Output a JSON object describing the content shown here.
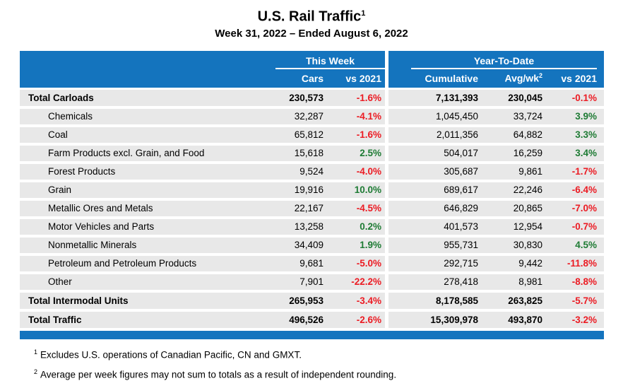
{
  "page": {
    "title": "U.S. Rail Traffic",
    "title_footnote_ref": "1",
    "subtitle": "Week 31, 2022 – Ended August 6, 2022"
  },
  "colors": {
    "header_blue": "#1474BE",
    "row_gray": "#E8E8E8",
    "negative_red": "#EC1B23",
    "positive_green": "#1E7B34"
  },
  "table": {
    "group_headers": {
      "this_week": "This Week",
      "year_to_date": "Year-To-Date"
    },
    "column_headers": {
      "cars": "Cars",
      "vs_2021_week": "vs 2021",
      "cumulative": "Cumulative",
      "avg_wk": "Avg/wk",
      "avg_wk_footnote_ref": "2",
      "vs_2021_ytd": "vs 2021"
    },
    "rows": [
      {
        "label": "Total Carloads",
        "total": true,
        "cars": "230,573",
        "vs_week": "-1.6%",
        "vs_week_positive": false,
        "cumulative": "7,131,393",
        "avg_wk": "230,045",
        "vs_ytd": "-0.1%",
        "vs_ytd_positive": false
      },
      {
        "label": "Chemicals",
        "total": false,
        "cars": "32,287",
        "vs_week": "-4.1%",
        "vs_week_positive": false,
        "cumulative": "1,045,450",
        "avg_wk": "33,724",
        "vs_ytd": "3.9%",
        "vs_ytd_positive": true
      },
      {
        "label": "Coal",
        "total": false,
        "cars": "65,812",
        "vs_week": "-1.6%",
        "vs_week_positive": false,
        "cumulative": "2,011,356",
        "avg_wk": "64,882",
        "vs_ytd": "3.3%",
        "vs_ytd_positive": true
      },
      {
        "label": "Farm Products excl. Grain, and Food",
        "total": false,
        "cars": "15,618",
        "vs_week": "2.5%",
        "vs_week_positive": true,
        "cumulative": "504,017",
        "avg_wk": "16,259",
        "vs_ytd": "3.4%",
        "vs_ytd_positive": true
      },
      {
        "label": "Forest Products",
        "total": false,
        "cars": "9,524",
        "vs_week": "-4.0%",
        "vs_week_positive": false,
        "cumulative": "305,687",
        "avg_wk": "9,861",
        "vs_ytd": "-1.7%",
        "vs_ytd_positive": false
      },
      {
        "label": "Grain",
        "total": false,
        "cars": "19,916",
        "vs_week": "10.0%",
        "vs_week_positive": true,
        "cumulative": "689,617",
        "avg_wk": "22,246",
        "vs_ytd": "-6.4%",
        "vs_ytd_positive": false
      },
      {
        "label": "Metallic Ores and Metals",
        "total": false,
        "cars": "22,167",
        "vs_week": "-4.5%",
        "vs_week_positive": false,
        "cumulative": "646,829",
        "avg_wk": "20,865",
        "vs_ytd": "-7.0%",
        "vs_ytd_positive": false
      },
      {
        "label": "Motor Vehicles and Parts",
        "total": false,
        "cars": "13,258",
        "vs_week": "0.2%",
        "vs_week_positive": true,
        "cumulative": "401,573",
        "avg_wk": "12,954",
        "vs_ytd": "-0.7%",
        "vs_ytd_positive": false
      },
      {
        "label": "Nonmetallic Minerals",
        "total": false,
        "cars": "34,409",
        "vs_week": "1.9%",
        "vs_week_positive": true,
        "cumulative": "955,731",
        "avg_wk": "30,830",
        "vs_ytd": "4.5%",
        "vs_ytd_positive": true
      },
      {
        "label": "Petroleum and Petroleum Products",
        "total": false,
        "cars": "9,681",
        "vs_week": "-5.0%",
        "vs_week_positive": false,
        "cumulative": "292,715",
        "avg_wk": "9,442",
        "vs_ytd": "-11.8%",
        "vs_ytd_positive": false
      },
      {
        "label": "Other",
        "total": false,
        "cars": "7,901",
        "vs_week": "-22.2%",
        "vs_week_positive": false,
        "cumulative": "278,418",
        "avg_wk": "8,981",
        "vs_ytd": "-8.8%",
        "vs_ytd_positive": false
      },
      {
        "label": "Total Intermodal Units",
        "total": true,
        "cars": "265,953",
        "vs_week": "-3.4%",
        "vs_week_positive": false,
        "cumulative": "8,178,585",
        "avg_wk": "263,825",
        "vs_ytd": "-5.7%",
        "vs_ytd_positive": false
      },
      {
        "label": "Total Traffic",
        "total": true,
        "cars": "496,526",
        "vs_week": "-2.6%",
        "vs_week_positive": false,
        "cumulative": "15,309,978",
        "avg_wk": "493,870",
        "vs_ytd": "-3.2%",
        "vs_ytd_positive": false
      }
    ]
  },
  "footnotes": [
    {
      "ref": "1",
      "text": "Excludes U.S. operations of Canadian Pacific, CN and GMXT."
    },
    {
      "ref": "2",
      "text": "Average per week figures may not sum to totals as a result of independent rounding."
    }
  ]
}
